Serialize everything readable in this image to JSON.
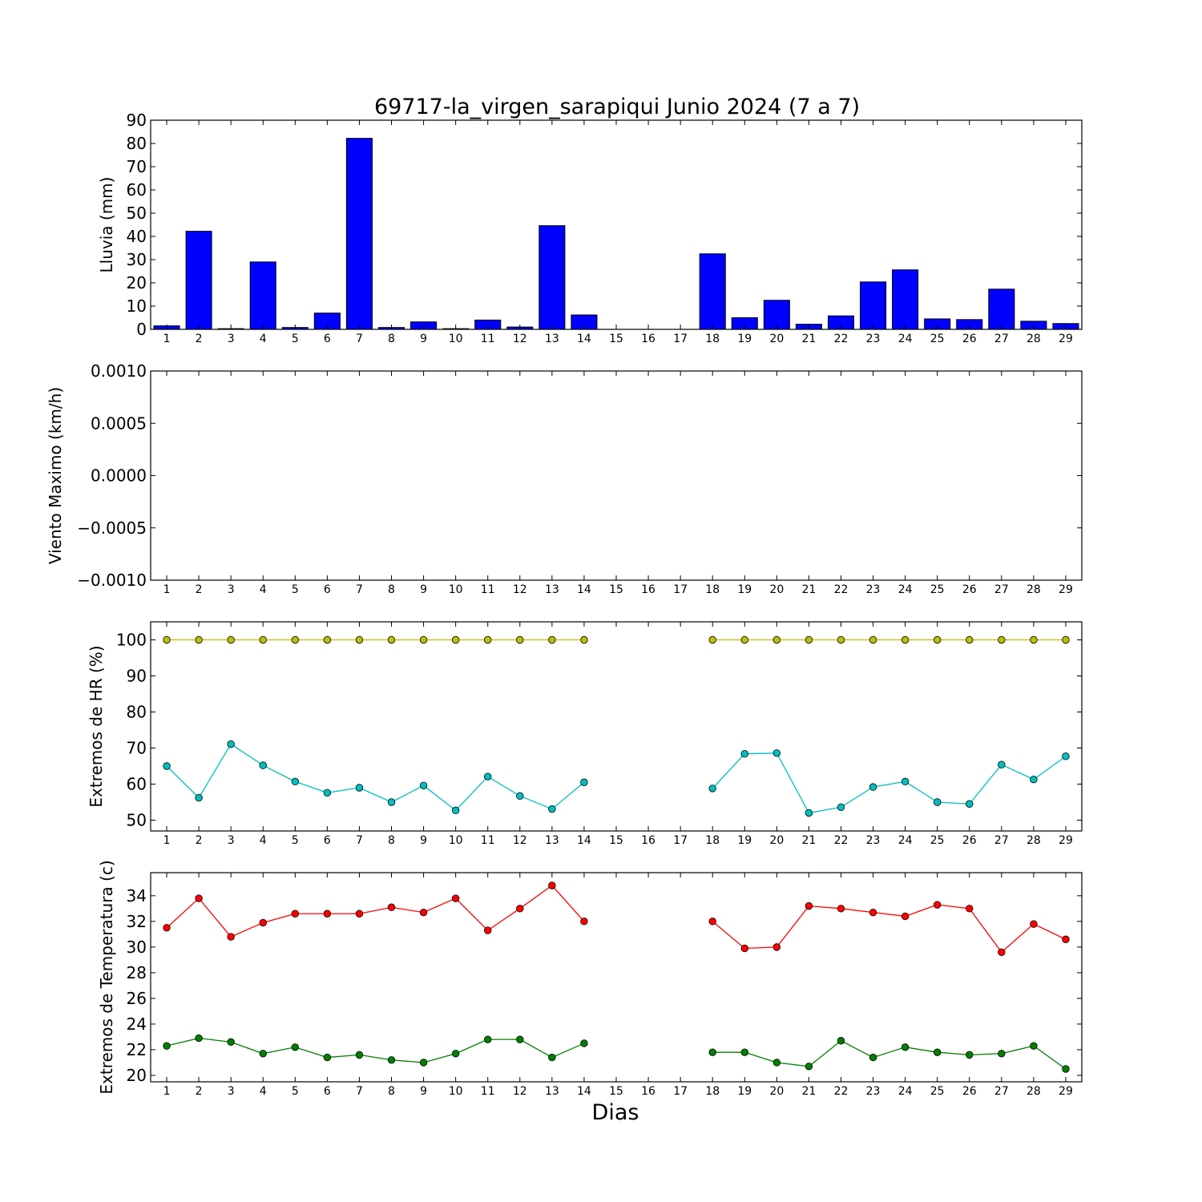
{
  "figure": {
    "title": "69717-la_virgen_sarapiqui Junio 2024  (7 a 7)",
    "xlabel": "Dias"
  },
  "chart_data": [
    {
      "type": "bar",
      "ylabel": "Lluvia (mm)",
      "ylim": [
        0,
        90
      ],
      "yticks": [
        0,
        10,
        20,
        30,
        40,
        50,
        60,
        70,
        80,
        90
      ],
      "ytick_labels": [
        "0",
        "10",
        "20",
        "30",
        "40",
        "50",
        "60",
        "70",
        "80",
        "90"
      ],
      "categories": [
        "1",
        "2",
        "3",
        "4",
        "5",
        "6",
        "7",
        "8",
        "9",
        "10",
        "11",
        "12",
        "13",
        "14",
        "15",
        "16",
        "17",
        "18",
        "19",
        "20",
        "21",
        "22",
        "23",
        "24",
        "25",
        "26",
        "27",
        "28",
        "29"
      ],
      "values": [
        1.5,
        42.2,
        0.3,
        29.0,
        0.8,
        7.0,
        82.2,
        0.8,
        3.2,
        0.3,
        4.0,
        1.0,
        44.6,
        6.2,
        null,
        null,
        null,
        32.5,
        5.0,
        12.5,
        2.2,
        5.8,
        20.4,
        25.6,
        4.5,
        4.2,
        17.3,
        3.5,
        2.5
      ],
      "color": "#0000ff",
      "grid": false
    },
    {
      "type": "line",
      "ylabel": "Viento Maximo (km/h)",
      "ylim": [
        -0.001,
        0.001
      ],
      "yticks": [
        -0.001,
        -0.0005,
        0,
        0.0005,
        0.001
      ],
      "ytick_labels": [
        "−0.0010",
        "−0.0005",
        "0.0000",
        "0.0005",
        "0.0010"
      ],
      "categories": [
        "1",
        "2",
        "3",
        "4",
        "5",
        "6",
        "7",
        "8",
        "9",
        "10",
        "11",
        "12",
        "13",
        "14",
        "15",
        "16",
        "17",
        "18",
        "19",
        "20",
        "21",
        "22",
        "23",
        "24",
        "25",
        "26",
        "27",
        "28",
        "29"
      ],
      "series": [],
      "grid": false
    },
    {
      "type": "line",
      "ylabel": "Extremos de HR (%)",
      "ylim": [
        47,
        105
      ],
      "yticks": [
        50,
        60,
        70,
        80,
        90,
        100
      ],
      "ytick_labels": [
        "50",
        "60",
        "70",
        "80",
        "90",
        "100"
      ],
      "categories": [
        "1",
        "2",
        "3",
        "4",
        "5",
        "6",
        "7",
        "8",
        "9",
        "10",
        "11",
        "12",
        "13",
        "14",
        "15",
        "16",
        "17",
        "18",
        "19",
        "20",
        "21",
        "22",
        "23",
        "24",
        "25",
        "26",
        "27",
        "28",
        "29"
      ],
      "series": [
        {
          "color": "#bfbf00",
          "values": [
            100,
            100,
            100,
            100,
            100,
            100,
            100,
            100,
            100,
            100,
            100,
            100,
            100,
            100,
            null,
            null,
            null,
            100,
            100,
            100,
            100,
            100,
            100,
            100,
            100,
            100,
            100,
            100,
            100
          ]
        },
        {
          "color": "#00bfbf",
          "values": [
            65,
            56.2,
            71.1,
            65.2,
            60.7,
            57.6,
            59,
            55,
            59.6,
            52.7,
            62.1,
            56.7,
            53.1,
            60.5,
            null,
            null,
            null,
            58.8,
            68.4,
            68.6,
            52,
            53.6,
            59.2,
            60.7,
            55,
            54.5,
            65.4,
            61.3,
            67.7
          ]
        }
      ],
      "grid": false
    },
    {
      "type": "line",
      "ylabel": "Extremos de Temperatura (c)",
      "ylim": [
        19.5,
        35.8
      ],
      "yticks": [
        20,
        22,
        24,
        26,
        28,
        30,
        32,
        34
      ],
      "ytick_labels": [
        "20",
        "22",
        "24",
        "26",
        "28",
        "30",
        "32",
        "34"
      ],
      "categories": [
        "1",
        "2",
        "3",
        "4",
        "5",
        "6",
        "7",
        "8",
        "9",
        "10",
        "11",
        "12",
        "13",
        "14",
        "15",
        "16",
        "17",
        "18",
        "19",
        "20",
        "21",
        "22",
        "23",
        "24",
        "25",
        "26",
        "27",
        "28",
        "29"
      ],
      "series": [
        {
          "color": "#ff0000",
          "values": [
            31.5,
            33.8,
            30.8,
            31.9,
            32.6,
            32.6,
            32.6,
            33.1,
            32.7,
            33.8,
            31.3,
            33,
            34.8,
            32,
            null,
            null,
            null,
            32,
            29.9,
            30,
            33.2,
            33,
            32.7,
            32.4,
            33.3,
            33,
            29.6,
            31.8,
            30.6
          ]
        },
        {
          "color": "#007f00",
          "values": [
            22.3,
            22.9,
            22.6,
            21.7,
            22.2,
            21.4,
            21.6,
            21.2,
            21,
            21.7,
            22.8,
            22.8,
            21.4,
            22.5,
            null,
            null,
            null,
            21.8,
            21.8,
            21,
            20.7,
            22.7,
            21.4,
            22.2,
            21.8,
            21.6,
            21.7,
            22.3,
            20.5
          ]
        }
      ],
      "grid": false
    }
  ]
}
